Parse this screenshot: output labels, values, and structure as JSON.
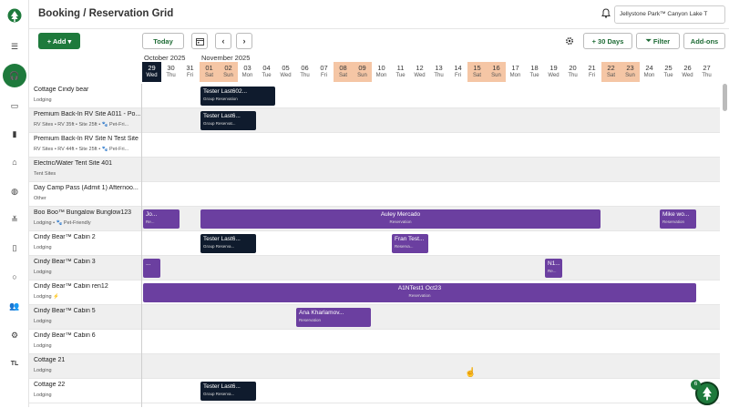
{
  "app": {
    "page_title": "Booking / Reservation Grid",
    "park_selector": "Jellystone Park™ Canyon Lake T",
    "brand_color": "#1e7a3c"
  },
  "sidebar": {
    "items": [
      {
        "icon": "menu-icon"
      },
      {
        "icon": "headset-icon",
        "active": true
      },
      {
        "icon": "card-icon"
      },
      {
        "icon": "bar-chart-icon"
      },
      {
        "icon": "building-icon"
      },
      {
        "icon": "globe-icon"
      },
      {
        "icon": "sliders-icon"
      },
      {
        "icon": "map-icon"
      },
      {
        "icon": "circle-icon"
      },
      {
        "icon": "users-icon"
      },
      {
        "icon": "gear-icon"
      },
      {
        "label": "TL"
      }
    ]
  },
  "toolbar": {
    "add_label": "+ Add ▾",
    "today_label": "Today",
    "range_label": "+ 30 Days",
    "filter_label": "Filter",
    "addons_label": "Add-ons"
  },
  "calendar": {
    "months": [
      "October 2025",
      "November 2025"
    ],
    "days": [
      {
        "num": "29",
        "wd": "Wed",
        "type": "today"
      },
      {
        "num": "30",
        "wd": "Thu"
      },
      {
        "num": "31",
        "wd": "Fri"
      },
      {
        "num": "01",
        "wd": "Sat",
        "type": "weekend"
      },
      {
        "num": "02",
        "wd": "Sun",
        "type": "weekend"
      },
      {
        "num": "03",
        "wd": "Mon"
      },
      {
        "num": "04",
        "wd": "Tue"
      },
      {
        "num": "05",
        "wd": "Wed"
      },
      {
        "num": "06",
        "wd": "Thu"
      },
      {
        "num": "07",
        "wd": "Fri"
      },
      {
        "num": "08",
        "wd": "Sat",
        "type": "weekend"
      },
      {
        "num": "09",
        "wd": "Sun",
        "type": "weekend"
      },
      {
        "num": "10",
        "wd": "Mon"
      },
      {
        "num": "11",
        "wd": "Tue"
      },
      {
        "num": "12",
        "wd": "Wed"
      },
      {
        "num": "13",
        "wd": "Thu"
      },
      {
        "num": "14",
        "wd": "Fri"
      },
      {
        "num": "15",
        "wd": "Sat",
        "type": "weekend"
      },
      {
        "num": "16",
        "wd": "Sun",
        "type": "weekend"
      },
      {
        "num": "17",
        "wd": "Mon"
      },
      {
        "num": "18",
        "wd": "Tue"
      },
      {
        "num": "19",
        "wd": "Wed"
      },
      {
        "num": "20",
        "wd": "Thu"
      },
      {
        "num": "21",
        "wd": "Fri"
      },
      {
        "num": "22",
        "wd": "Sat",
        "type": "weekend"
      },
      {
        "num": "23",
        "wd": "Sun",
        "type": "weekend"
      },
      {
        "num": "24",
        "wd": "Mon"
      },
      {
        "num": "25",
        "wd": "Tue"
      },
      {
        "num": "26",
        "wd": "Wed"
      },
      {
        "num": "27",
        "wd": "Thu"
      }
    ]
  },
  "sites": [
    {
      "name": "Cottage Cindy bear",
      "sub": "Lodging",
      "alt": false
    },
    {
      "name": "Premium Back-In RV Site A011 - Po...",
      "sub": "RV Sites • RV 35ft • Site 25ft • 🐾 Pet-Fri...",
      "alt": true
    },
    {
      "name": "Premium Back-In RV Site N Test Site",
      "sub": "RV Sites • RV 44ft • Site 25ft • 🐾 Pet-Fri...",
      "alt": false
    },
    {
      "name": "Electric/Water Tent Site 401",
      "sub": "Tent Sites",
      "alt": true
    },
    {
      "name": "Day Camp Pass (Admit 1) Afternoo...",
      "sub": "Other",
      "alt": false
    },
    {
      "name": "Boo Boo™ Bungalow Bunglow123",
      "sub": "Lodging • 🐾 Pet-Friendly",
      "alt": true
    },
    {
      "name": "Cindy Bear™ Cabin 2",
      "sub": "Lodging",
      "alt": false
    },
    {
      "name": "Cindy Bear™ Cabin 3",
      "sub": "Lodging",
      "alt": true
    },
    {
      "name": "Cindy Bear™ Cabin ren12",
      "sub": "Lodging  ⚡",
      "alt": false
    },
    {
      "name": "Cindy Bear™ Cabin 5",
      "sub": "Lodging",
      "alt": true
    },
    {
      "name": "Cindy Bear™ Cabin 6",
      "sub": "Lodging",
      "alt": false
    },
    {
      "name": "Cottage 21",
      "sub": "Lodging",
      "alt": true
    },
    {
      "name": "Cottage 22",
      "sub": "Lodging",
      "alt": false
    }
  ],
  "reservations": [
    {
      "row": 0,
      "start": 3,
      "span": 4,
      "color": "dark",
      "title": "Tester Last602...",
      "sub": "Group Reservation"
    },
    {
      "row": 1,
      "start": 3,
      "span": 3,
      "color": "dark",
      "title": "Tester Last6...",
      "sub": "Group Reservat..."
    },
    {
      "row": 5,
      "start": 0,
      "span": 2,
      "color": "purple",
      "title": "Jo...",
      "sub": "Re..."
    },
    {
      "row": 5,
      "start": 3,
      "span": 21,
      "color": "purple",
      "title": "Auley Mercado",
      "sub": "Reservation",
      "center": true
    },
    {
      "row": 5,
      "start": 27,
      "span": 2,
      "color": "purple",
      "title": "Mike wo...",
      "sub": "Reservation"
    },
    {
      "row": 6,
      "start": 3,
      "span": 3,
      "color": "dark",
      "title": "Tester Last6...",
      "sub": "Group Reserva..."
    },
    {
      "row": 6,
      "start": 13,
      "span": 2,
      "color": "purple",
      "title": "Fran Test...",
      "sub": "Reserva..."
    },
    {
      "row": 7,
      "start": 0,
      "span": 1,
      "color": "purple",
      "title": "...",
      "sub": ""
    },
    {
      "row": 7,
      "start": 21,
      "span": 1,
      "color": "purple",
      "title": "N1...",
      "sub": "Re..."
    },
    {
      "row": 8,
      "start": 0,
      "span": 29,
      "color": "purple",
      "title": "A1NTest1 Oct23",
      "sub": "Reservation",
      "center": true
    },
    {
      "row": 9,
      "start": 8,
      "span": 4,
      "color": "purple",
      "title": "Ana Kharlamov...",
      "sub": "Reservation"
    },
    {
      "row": 12,
      "start": 3,
      "span": 3,
      "color": "dark",
      "title": "Tester Last6...",
      "sub": "Group Reserva..."
    }
  ],
  "fab": {
    "badge": "6"
  }
}
